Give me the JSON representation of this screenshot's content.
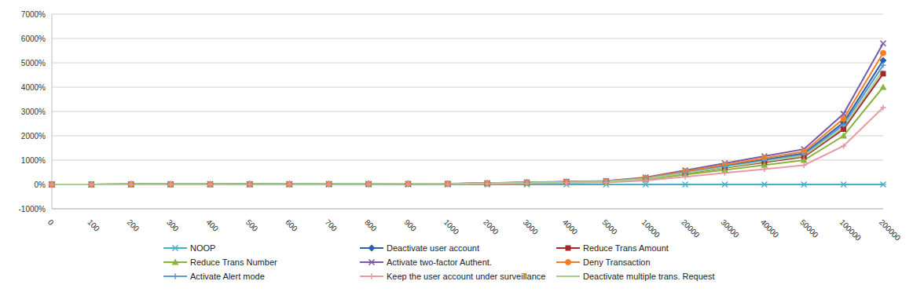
{
  "chart_data": {
    "type": "line",
    "categories": [
      "0",
      "100",
      "200",
      "300",
      "400",
      "500",
      "600",
      "700",
      "800",
      "900",
      "1000",
      "2000",
      "3000",
      "4000",
      "5000",
      "10000",
      "20000",
      "30000",
      "40000",
      "50000",
      "100000",
      "200000"
    ],
    "ylim": [
      -1000,
      7000
    ],
    "yticks": [
      {
        "value": -1000,
        "label": "-1000%"
      },
      {
        "value": 0,
        "label": "0%"
      },
      {
        "value": 1000,
        "label": "1000%"
      },
      {
        "value": 2000,
        "label": "2000%"
      },
      {
        "value": 3000,
        "label": "3000%"
      },
      {
        "value": 4000,
        "label": "4000%"
      },
      {
        "value": 5000,
        "label": "5000%"
      },
      {
        "value": 6000,
        "label": "6000%"
      },
      {
        "value": 7000,
        "label": "7000%"
      }
    ],
    "grid": true,
    "legend": "bottom",
    "series": [
      {
        "name": "NOOP",
        "color": "#4bacc6",
        "marker": "star",
        "values": [
          0,
          0,
          0,
          0,
          0,
          0,
          0,
          0,
          0,
          0,
          0,
          0,
          0,
          0,
          0,
          0,
          0,
          0,
          0,
          0,
          0,
          0
        ]
      },
      {
        "name": "Deactivate user account",
        "color": "#2f5ea8",
        "marker": "diamond",
        "values": [
          0,
          3,
          5,
          8,
          10,
          13,
          15,
          18,
          20,
          23,
          26,
          51,
          77,
          102,
          128,
          255,
          510,
          765,
          1020,
          1275,
          2550,
          5100
        ]
      },
      {
        "name": "Reduce Trans Amount",
        "color": "#a5282a",
        "marker": "square",
        "values": [
          0,
          2,
          5,
          7,
          9,
          11,
          14,
          16,
          18,
          20,
          23,
          46,
          68,
          91,
          114,
          228,
          455,
          683,
          910,
          1138,
          2275,
          4550
        ]
      },
      {
        "name": "Reduce Trans Number",
        "color": "#8cb43c",
        "marker": "triangle",
        "values": [
          0,
          2,
          4,
          6,
          8,
          10,
          12,
          14,
          16,
          18,
          20,
          40,
          60,
          80,
          100,
          200,
          400,
          600,
          800,
          1000,
          2000,
          4000
        ]
      },
      {
        "name": "Activate two-factor Authent.",
        "color": "#7c5ba6",
        "marker": "x",
        "values": [
          0,
          3,
          6,
          9,
          12,
          15,
          17,
          20,
          23,
          26,
          29,
          58,
          87,
          116,
          145,
          290,
          580,
          870,
          1160,
          1450,
          2900,
          5800
        ]
      },
      {
        "name": "Deny Transaction",
        "color": "#f07f28",
        "marker": "circle",
        "values": [
          0,
          3,
          5,
          8,
          11,
          14,
          16,
          19,
          22,
          24,
          27,
          54,
          81,
          108,
          135,
          270,
          540,
          810,
          1080,
          1350,
          2700,
          5400
        ]
      },
      {
        "name": "Activate Alert mode",
        "color": "#5b9bd5",
        "marker": "plus",
        "values": [
          0,
          2,
          5,
          7,
          10,
          12,
          15,
          17,
          20,
          22,
          25,
          49,
          74,
          98,
          123,
          245,
          490,
          735,
          980,
          1225,
          2450,
          4900
        ]
      },
      {
        "name": "Keep the user account under surveillance",
        "color": "#e89aa2",
        "marker": "plus",
        "values": [
          0,
          2,
          3,
          5,
          6,
          8,
          9,
          11,
          13,
          14,
          16,
          32,
          47,
          63,
          79,
          158,
          316,
          474,
          632,
          790,
          1580,
          3160
        ]
      },
      {
        "name": "Deactivate multiple trans. Request",
        "color": "#a8d08d",
        "marker": "none",
        "values": [
          0,
          2,
          5,
          7,
          9,
          12,
          14,
          16,
          19,
          21,
          24,
          47,
          71,
          94,
          118,
          235,
          470,
          705,
          940,
          1175,
          2350,
          4700
        ]
      }
    ]
  }
}
